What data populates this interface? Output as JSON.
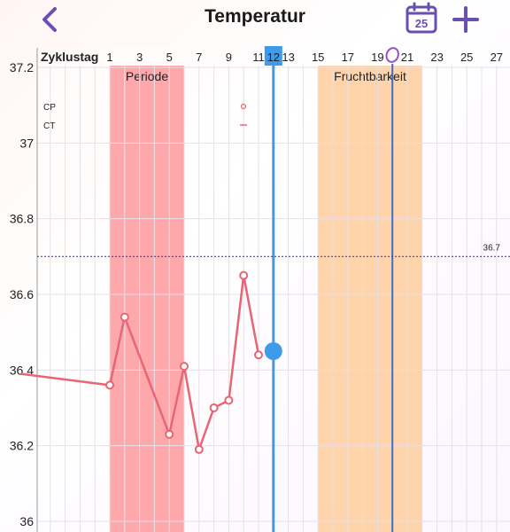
{
  "header": {
    "title": "Temperatur",
    "calendar_day": "25"
  },
  "colors": {
    "accent": "#6a4fb0",
    "period_band": "#ffa3a8",
    "fertile_band": "#ffcfa1",
    "temp_line": "#e86574",
    "today_line": "#3d9be9",
    "ovulation_line": "#3b6ed2",
    "coverline": "#3f3fb8"
  },
  "chart_data": {
    "type": "line",
    "x_axis_label": "Zyklustag",
    "x_range": [
      -4,
      28
    ],
    "x_ticks": [
      "1",
      "3",
      "5",
      "7",
      "9",
      "11",
      "12",
      "13",
      "15",
      "17",
      "19",
      "21",
      "23",
      "25",
      "27"
    ],
    "today_day": 12,
    "ovulation_day": 20,
    "y_range": [
      36.0,
      37.2
    ],
    "y_ticks": [
      "36",
      "36.2",
      "36.4",
      "36.6",
      "36.8",
      "37",
      "37.2"
    ],
    "coverline": {
      "value": 36.7,
      "label": "36.7"
    },
    "bands": [
      {
        "label": "Periode",
        "from": 1,
        "to": 6
      },
      {
        "label": "Fruchtbarkeit",
        "from": 15,
        "to": 22
      }
    ],
    "legend": [
      {
        "label": "CP",
        "marker": "circle"
      },
      {
        "label": "CT",
        "marker": "dash"
      }
    ],
    "series": [
      {
        "points": [
          {
            "x": -5,
            "y": 36.39
          },
          {
            "x": 1,
            "y": 36.36
          },
          {
            "x": 2,
            "y": 36.54
          },
          {
            "x": 5,
            "y": 36.23
          },
          {
            "x": 6,
            "y": 36.41
          },
          {
            "x": 7,
            "y": 36.19
          },
          {
            "x": 8,
            "y": 36.3
          },
          {
            "x": 9,
            "y": 36.32
          },
          {
            "x": 10,
            "y": 36.65
          },
          {
            "x": 11,
            "y": 36.44
          }
        ]
      }
    ],
    "today_point": {
      "x": 12,
      "y": 36.45
    }
  }
}
